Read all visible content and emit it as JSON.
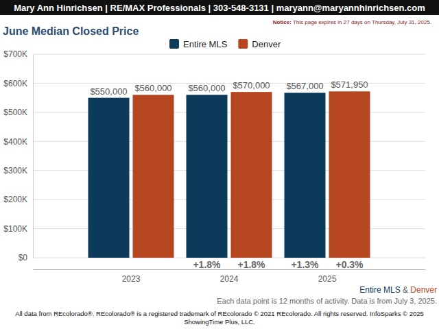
{
  "chart_data": {
    "type": "bar",
    "header": "Mary Ann Hinrichsen | RE/MAX Professionals | 303-548-3131 | maryann@maryannhinrichsen.com",
    "notice_label": "Notice:",
    "notice": "This page expires in 27 days on Thursday, July 31, 2025.",
    "title": "June Median Closed Price",
    "categories": [
      "2023",
      "2024",
      "2025"
    ],
    "series": [
      {
        "name": "Entire MLS",
        "color": "#0b3a5a",
        "values": [
          550000,
          560000,
          567000
        ],
        "value_labels": [
          "$550,000",
          "$560,000",
          "$567,000"
        ],
        "changes": [
          null,
          1.8,
          1.3
        ],
        "change_labels": [
          null,
          "+1.8%",
          "+1.3%"
        ]
      },
      {
        "name": "Denver",
        "color": "#b5461f",
        "values": [
          560000,
          570000,
          571950
        ],
        "value_labels": [
          "$560,000",
          "$570,000",
          "$571,950"
        ],
        "changes": [
          null,
          1.8,
          0.3
        ],
        "change_labels": [
          null,
          "+1.8%",
          "+0.3%"
        ]
      }
    ],
    "ylim": [
      0,
      700000
    ],
    "yticks": [
      {
        "value": 0,
        "label": "$0"
      },
      {
        "value": 100000,
        "label": "$100K"
      },
      {
        "value": 200000,
        "label": "$200K"
      },
      {
        "value": 300000,
        "label": "$300K"
      },
      {
        "value": 400000,
        "label": "$400K"
      },
      {
        "value": 500000,
        "label": "$500K"
      },
      {
        "value": 600000,
        "label": "$600K"
      },
      {
        "value": 700000,
        "label": "$700K"
      }
    ],
    "grid": true,
    "legend": "top",
    "data_labels": true,
    "caption_joiner": "&",
    "footnote": "Each data point is 12 months of activity. Data is from July 3, 2025.",
    "footer_lines": [
      "All data from REcolorado®. REcolorado® is a registered trademark of REcolorado © 2021 REcolorado. All rights reserved. InfoSparks © 2025",
      "ShowingTime Plus, LLC."
    ]
  }
}
